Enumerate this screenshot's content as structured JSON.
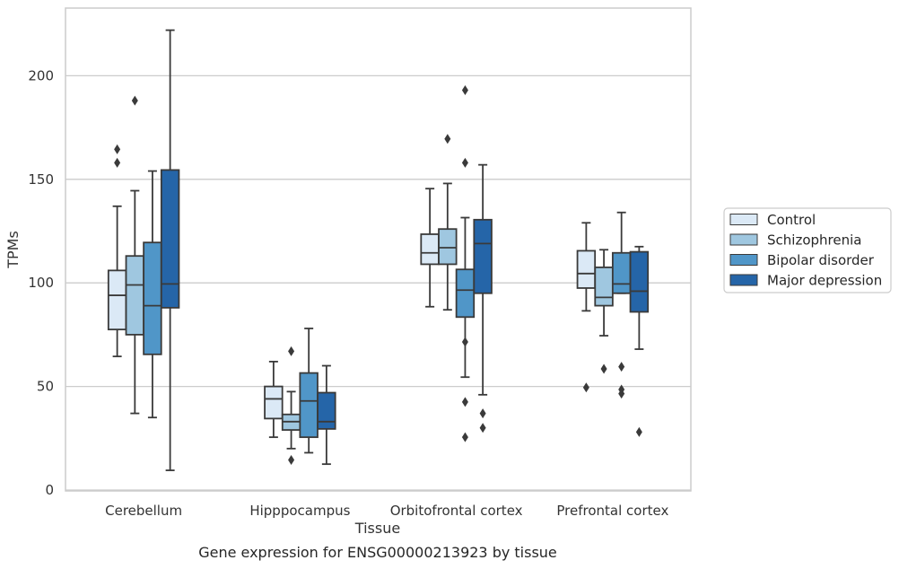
{
  "chart_data": {
    "type": "box",
    "title": "",
    "caption": "Gene expression for ENSG00000213923 by tissue",
    "xlabel": "Tissue",
    "ylabel": "TPMs",
    "ylim": [
      0,
      232
    ],
    "yticks": [
      0,
      50,
      100,
      150,
      200
    ],
    "grid": "horizontal",
    "legend_position": "right",
    "categories": [
      "Cerebellum",
      "Hipppocampus",
      "Orbitofrontal cortex",
      "Prefrontal cortex"
    ],
    "series": [
      {
        "name": "Control",
        "color": "#dbe9f6",
        "boxes": [
          {
            "min": 64.5,
            "q1": 77.5,
            "median": 94,
            "q3": 106,
            "max": 137,
            "outliers": [
              158,
              164.5
            ]
          },
          {
            "min": 25.5,
            "q1": 34.5,
            "median": 44,
            "q3": 50,
            "max": 62,
            "outliers": []
          },
          {
            "min": 88.5,
            "q1": 109,
            "median": 114.5,
            "q3": 123.5,
            "max": 145.5,
            "outliers": []
          },
          {
            "min": 86.5,
            "q1": 97.5,
            "median": 104.5,
            "q3": 115.5,
            "max": 129,
            "outliers": [
              49.5
            ]
          }
        ]
      },
      {
        "name": "Schizophrenia",
        "color": "#9fc7e0",
        "boxes": [
          {
            "min": 37,
            "q1": 75,
            "median": 99,
            "q3": 113,
            "max": 144.5,
            "outliers": [
              188
            ]
          },
          {
            "min": 20,
            "q1": 29,
            "median": 33,
            "q3": 36.5,
            "max": 47.5,
            "outliers": [
              14.5,
              67
            ]
          },
          {
            "min": 87,
            "q1": 109,
            "median": 117,
            "q3": 126,
            "max": 148,
            "outliers": [
              169.5
            ]
          },
          {
            "min": 74.5,
            "q1": 89,
            "median": 93,
            "q3": 107.5,
            "max": 116,
            "outliers": [
              58.5
            ]
          }
        ]
      },
      {
        "name": "Bipolar disorder",
        "color": "#5096c8",
        "boxes": [
          {
            "min": 35,
            "q1": 65.5,
            "median": 89,
            "q3": 119.5,
            "max": 154,
            "outliers": []
          },
          {
            "min": 18,
            "q1": 25.5,
            "median": 43,
            "q3": 56.5,
            "max": 78,
            "outliers": []
          },
          {
            "min": 54.5,
            "q1": 83.5,
            "median": 96.5,
            "q3": 106.5,
            "max": 131.5,
            "outliers": [
              25.5,
              42.5,
              71.5,
              158,
              193
            ]
          },
          {
            "min": 95,
            "q1": 95,
            "median": 99.5,
            "q3": 114.5,
            "max": 134,
            "outliers": [
              46.5,
              48.5,
              59.5
            ]
          }
        ]
      },
      {
        "name": "Major depression",
        "color": "#2565a8",
        "boxes": [
          {
            "min": 9.5,
            "q1": 88,
            "median": 99.5,
            "q3": 154.5,
            "max": 222,
            "outliers": []
          },
          {
            "min": 12.5,
            "q1": 29.5,
            "median": 33,
            "q3": 47,
            "max": 60,
            "outliers": []
          },
          {
            "min": 46,
            "q1": 95,
            "median": 119,
            "q3": 130.5,
            "max": 157,
            "outliers": [
              30,
              37
            ]
          },
          {
            "min": 68,
            "q1": 86,
            "median": 96,
            "q3": 115,
            "max": 117.5,
            "outliers": [
              28
            ]
          }
        ]
      }
    ]
  }
}
